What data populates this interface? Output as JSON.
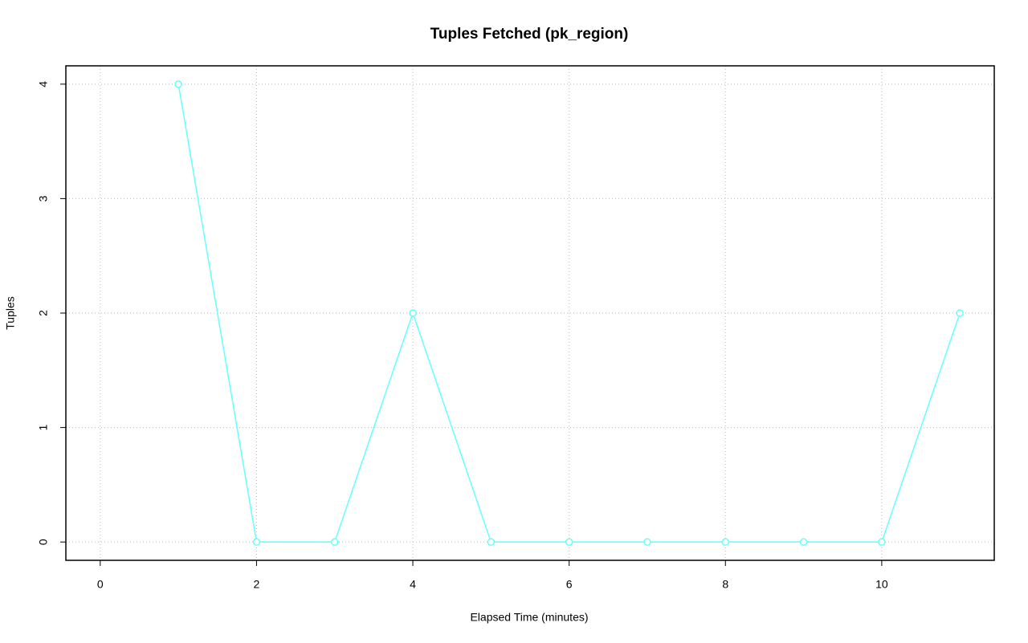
{
  "chart_data": {
    "type": "line",
    "title": "Tuples Fetched (pk_region)",
    "x_label": "Elapsed Time (minutes)",
    "y_label": "Tuples",
    "x": [
      1,
      2,
      3,
      4,
      5,
      6,
      7,
      8,
      9,
      10,
      11
    ],
    "series": [
      {
        "name": "pk_region",
        "color": "#66ffff",
        "values": [
          4,
          0,
          0,
          2,
          0,
          0,
          0,
          0,
          0,
          0,
          2
        ]
      }
    ],
    "xlim": [
      -0.44,
      11.44
    ],
    "xticks": [
      0,
      2,
      4,
      6,
      8,
      10
    ],
    "ylim": [
      -0.16,
      4.16
    ],
    "yticks": [
      0,
      1,
      2,
      3,
      4
    ],
    "grid": true,
    "legend": false
  }
}
